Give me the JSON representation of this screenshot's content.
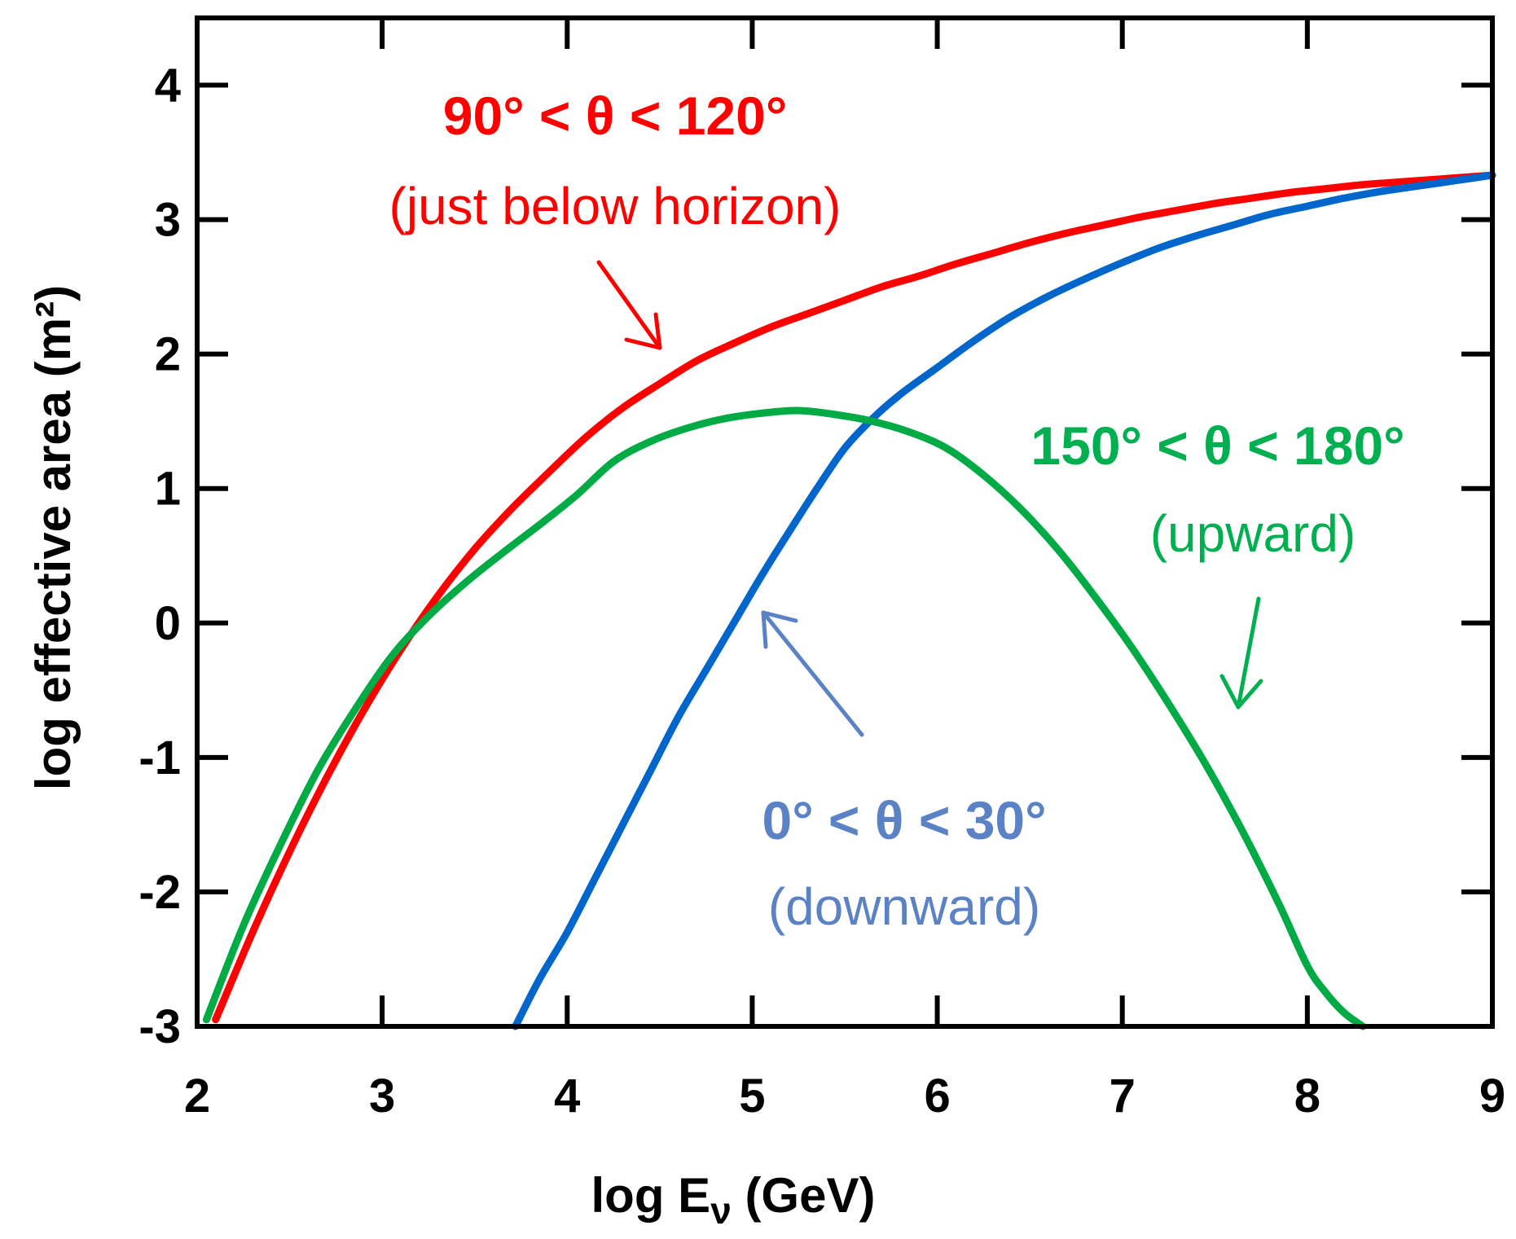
{
  "chart_data": {
    "type": "line",
    "xlabel": "log E",
    "xlabel_sub": "ν",
    "xlabel_unit": " (GeV)",
    "ylabel": "log effective area (m²)",
    "xlim": [
      2,
      9
    ],
    "ylim": [
      -3,
      4.5
    ],
    "xticks": [
      2,
      3,
      4,
      5,
      6,
      7,
      8,
      9
    ],
    "yticks": [
      -3,
      -2,
      -1,
      0,
      1,
      2,
      3,
      4
    ],
    "grid": false,
    "legend": "none",
    "series": [
      {
        "color": "#ff0000",
        "x": [
          2.1,
          2.3,
          2.5,
          2.7,
          2.9,
          3.1,
          3.3,
          3.5,
          3.7,
          3.9,
          4.1,
          4.3,
          4.5,
          4.7,
          4.9,
          5.1,
          5.3,
          5.5,
          5.7,
          5.9,
          6.1,
          6.3,
          6.5,
          6.7,
          6.9,
          7.1,
          7.3,
          7.5,
          7.7,
          7.9,
          8.1,
          8.3,
          8.5,
          8.7,
          8.9,
          9.0
        ],
        "y": [
          -2.95,
          -2.3,
          -1.7,
          -1.15,
          -0.65,
          -0.2,
          0.2,
          0.55,
          0.85,
          1.12,
          1.38,
          1.6,
          1.78,
          1.95,
          2.08,
          2.2,
          2.3,
          2.4,
          2.5,
          2.58,
          2.67,
          2.75,
          2.83,
          2.9,
          2.96,
          3.02,
          3.07,
          3.12,
          3.16,
          3.2,
          3.23,
          3.26,
          3.28,
          3.3,
          3.32,
          3.33
        ]
      },
      {
        "color": "#0066cc",
        "x": [
          3.72,
          3.85,
          4.0,
          4.15,
          4.3,
          4.45,
          4.6,
          4.75,
          4.9,
          5.05,
          5.2,
          5.35,
          5.5,
          5.65,
          5.8,
          6.0,
          6.2,
          6.4,
          6.6,
          6.8,
          7.0,
          7.2,
          7.4,
          7.6,
          7.8,
          8.0,
          8.2,
          8.4,
          8.6,
          8.8,
          9.0
        ],
        "y": [
          -3.0,
          -2.65,
          -2.3,
          -1.9,
          -1.5,
          -1.1,
          -0.7,
          -0.35,
          0.0,
          0.35,
          0.68,
          1.0,
          1.3,
          1.52,
          1.7,
          1.9,
          2.1,
          2.28,
          2.43,
          2.56,
          2.68,
          2.79,
          2.88,
          2.96,
          3.04,
          3.1,
          3.16,
          3.21,
          3.25,
          3.29,
          3.33
        ]
      },
      {
        "color": "#00aa44",
        "x": [
          2.05,
          2.25,
          2.45,
          2.65,
          2.85,
          3.05,
          3.25,
          3.45,
          3.65,
          3.85,
          4.05,
          4.25,
          4.45,
          4.65,
          4.85,
          5.05,
          5.25,
          5.45,
          5.65,
          5.85,
          6.05,
          6.25,
          6.45,
          6.65,
          6.85,
          7.05,
          7.25,
          7.45,
          7.65,
          7.85,
          8.0,
          8.1,
          8.2,
          8.3
        ],
        "y": [
          -2.95,
          -2.25,
          -1.65,
          -1.1,
          -0.65,
          -0.25,
          0.05,
          0.3,
          0.52,
          0.73,
          0.95,
          1.2,
          1.35,
          1.45,
          1.52,
          1.56,
          1.58,
          1.55,
          1.5,
          1.42,
          1.3,
          1.1,
          0.85,
          0.55,
          0.2,
          -0.18,
          -0.6,
          -1.05,
          -1.55,
          -2.1,
          -2.55,
          -2.75,
          -2.9,
          -3.0
        ]
      }
    ],
    "annotations": [
      {
        "text": "90° < θ < 120°",
        "sub": "(just below horizon)",
        "color": "#ff0000"
      },
      {
        "text": "150° < θ < 180°",
        "sub": "(upward)",
        "color": "#00b050"
      },
      {
        "text": "0° < θ < 30°",
        "sub": "(downward)",
        "color": "#5b82c4"
      }
    ]
  }
}
